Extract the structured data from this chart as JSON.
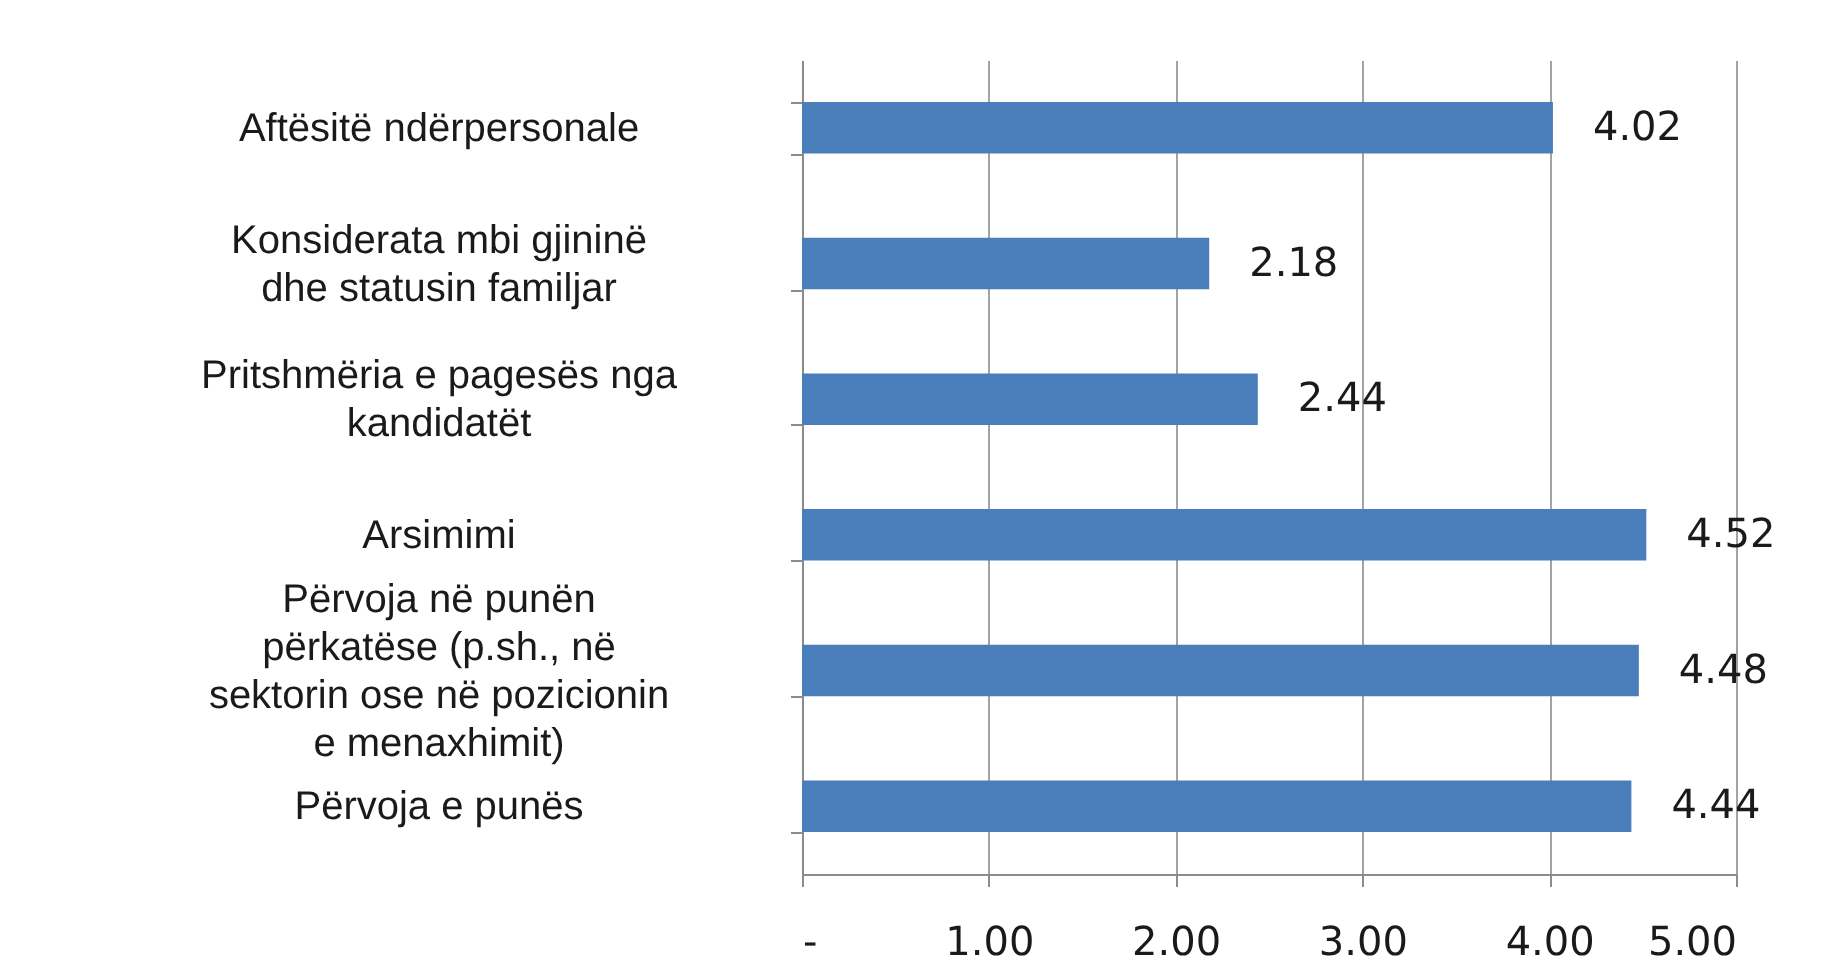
{
  "chart_data": {
    "type": "bar",
    "orientation": "horizontal",
    "categories": [
      "Aftësitë ndërpersonale",
      "Konsiderata mbi gjininë\ndhe statusin familjar",
      "Pritshmëria e pagesës nga\nkandidatët",
      "Arsimimi",
      "Përvoja në punën\npërkatëse (p.sh., në\nsektorin ose në pozicionin\ne menaxhimit)",
      "Përvoja e punës"
    ],
    "values": [
      4.02,
      2.18,
      2.44,
      4.52,
      4.48,
      4.44
    ],
    "color": "#4a7ebb",
    "xlim": [
      0,
      5
    ],
    "xticks": [
      {
        "value": 0,
        "label": "-"
      },
      {
        "value": 1,
        "label": "1.00"
      },
      {
        "value": 2,
        "label": "2.00"
      },
      {
        "value": 3,
        "label": "3.00"
      },
      {
        "value": 4,
        "label": "4.00"
      },
      {
        "value": 5,
        "label": "5.00"
      }
    ],
    "grid": "x",
    "data_labels": true
  }
}
